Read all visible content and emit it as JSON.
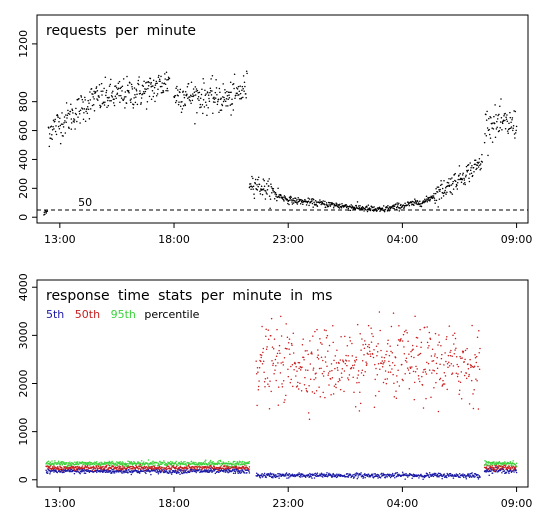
{
  "chart_data": [
    {
      "type": "scatter",
      "title": "requests  per  minute",
      "x_ticks": [
        "13:00",
        "18:00",
        "23:00",
        "04:00",
        "09:00"
      ],
      "y_ticks": [
        0,
        200,
        400,
        600,
        800,
        1200
      ],
      "ylim": [
        -40,
        1400
      ],
      "reference_line": {
        "y": 50,
        "label": "50",
        "style": "dashed"
      },
      "series": [
        {
          "color": "#000000",
          "segments": [
            {
              "x": [
                12.3,
                12.45
              ],
              "y": [
                20,
                40
              ]
            },
            {
              "x": [
                12.5,
                13.5
              ],
              "y": [
                600,
                700
              ]
            },
            {
              "x": [
                13.5,
                14.5
              ],
              "y": [
                700,
                820
              ]
            },
            {
              "x": [
                14.5,
                17.0
              ],
              "y": [
                820,
                880
              ]
            },
            {
              "x": [
                17.0,
                17.8
              ],
              "y": [
                880,
                950
              ]
            },
            {
              "x": [
                18.0,
                20.5
              ],
              "y": [
                850,
                820
              ]
            },
            {
              "x": [
                20.5,
                21.2
              ],
              "y": [
                820,
                900
              ]
            },
            {
              "x": [
                21.3,
                23.0
              ],
              "y": [
                250,
                120
              ]
            },
            {
              "x": [
                23.0,
                27.0
              ],
              "y": [
                120,
                50
              ]
            },
            {
              "x": [
                27.0,
                29.0
              ],
              "y": [
                50,
                110
              ]
            },
            {
              "x": [
                29.0,
                31.5
              ],
              "y": [
                110,
                380
              ]
            },
            {
              "x": [
                31.6,
                33.0
              ],
              "y": [
                650,
                640
              ]
            }
          ]
        }
      ]
    },
    {
      "type": "scatter",
      "title": "response  time  stats  per  minute  in  ms",
      "x_ticks": [
        "13:00",
        "18:00",
        "23:00",
        "04:00",
        "09:00"
      ],
      "y_ticks": [
        0,
        1000,
        2000,
        3000,
        4000
      ],
      "ylim": [
        -150,
        4150
      ],
      "legend": {
        "placement": "top-left",
        "items": [
          {
            "label": "5th",
            "color": "#1a1aa6"
          },
          {
            "label": "50th",
            "color": "#c81e1e"
          },
          {
            "label": "95th",
            "color": "#3cd23c"
          },
          {
            "label": "percentile",
            "color": "#000000"
          }
        ]
      },
      "series": [
        {
          "name": "5th",
          "color": "#1a1aa6",
          "segments": [
            {
              "x": [
                12.4,
                21.3
              ],
              "y": [
                180,
                180
              ]
            },
            {
              "x": [
                21.6,
                31.4
              ],
              "y": [
                90,
                90
              ]
            },
            {
              "x": [
                31.6,
                33.0
              ],
              "y": [
                190,
                190
              ]
            }
          ]
        },
        {
          "name": "50th",
          "color": "#c81e1e",
          "segments": [
            {
              "x": [
                12.4,
                21.3
              ],
              "y": [
                250,
                250
              ]
            },
            {
              "x": [
                21.6,
                31.4
              ],
              "y": [
                2400,
                2400
              ]
            },
            {
              "x": [
                31.6,
                33.0
              ],
              "y": [
                260,
                260
              ]
            }
          ]
        },
        {
          "name": "95th",
          "color": "#3cd23c",
          "segments": [
            {
              "x": [
                12.4,
                21.3
              ],
              "y": [
                340,
                340
              ]
            },
            {
              "x": [
                31.6,
                33.0
              ],
              "y": [
                340,
                340
              ]
            }
          ]
        }
      ]
    }
  ]
}
